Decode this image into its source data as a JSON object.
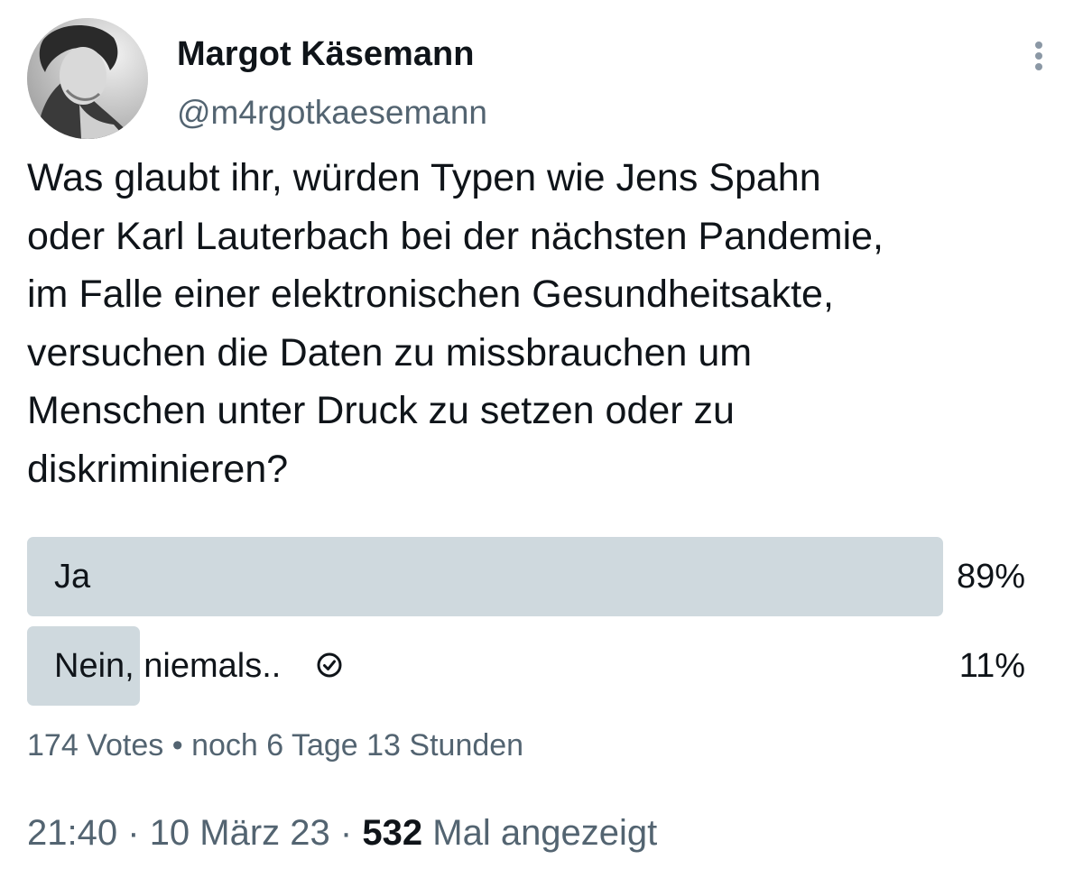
{
  "user": {
    "display_name": "Margot Käsemann",
    "handle": "@m4rgotkaesemann"
  },
  "more_menu_icon": "vertical-dots-icon",
  "tweet": {
    "text": "Was glaubt ihr, würden Typen wie Jens Spahn\noder Karl Lauterbach bei der nächsten Pandemie,\nim Falle einer elektronischen Gesundheitsakte,\nversuchen die Daten zu missbrauchen um\nMenschen unter Druck zu setzen oder zu\ndiskriminieren?"
  },
  "poll": {
    "options": [
      {
        "label": "Ja",
        "percent_label": "89%",
        "percent": 89,
        "voted": false
      },
      {
        "label": "Nein, niemals..",
        "percent_label": "11%",
        "percent": 11,
        "voted": true
      }
    ],
    "votes": "174 Votes",
    "separator": "•",
    "time_left": "noch 6 Tage 13 Stunden"
  },
  "footer": {
    "time": "21:40",
    "separator": "·",
    "date": "10 März 23",
    "views_count": "532",
    "views_label": "Mal angezeigt"
  },
  "colors": {
    "poll_bar": "#cfd9de",
    "secondary_text": "#536471",
    "primary_text": "#0f1419"
  }
}
